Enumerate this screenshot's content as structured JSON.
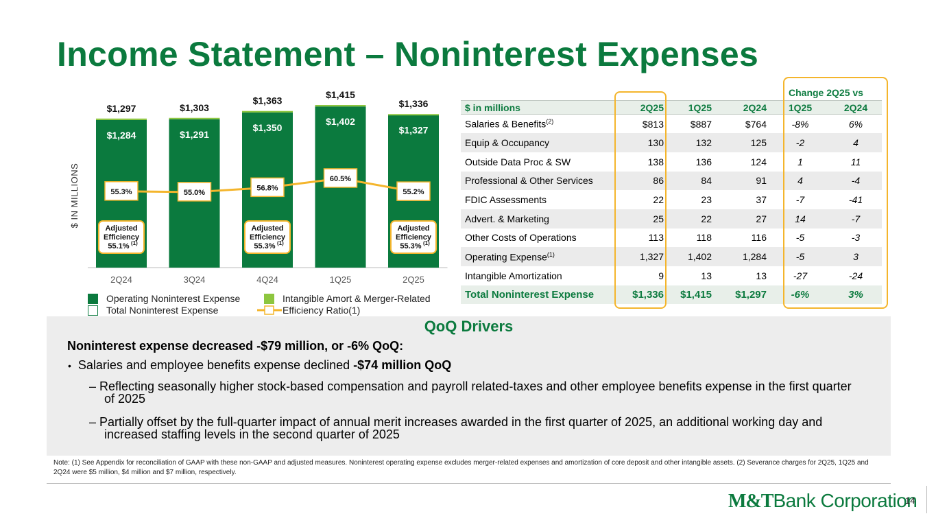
{
  "title": "Income Statement – Noninterest Expenses",
  "colors": {
    "brand_green": "#0b7a3e",
    "light_green": "#8dc63f",
    "highlight": "#f4b52c"
  },
  "chart_data": {
    "type": "bar",
    "categories": [
      "2Q24",
      "3Q24",
      "4Q24",
      "1Q25",
      "2Q25"
    ],
    "series": [
      {
        "name": "Operating Noninterest Expense",
        "values": [
          1284,
          1291,
          1350,
          1402,
          1327
        ],
        "labels": [
          "$1,284",
          "$1,291",
          "$1,350",
          "$1,402",
          "$1,327"
        ]
      },
      {
        "name": "Intangible Amort & Merger-Related",
        "values": [
          13,
          12,
          13,
          13,
          9
        ]
      },
      {
        "name": "Total Noninterest Expense",
        "values": [
          1297,
          1303,
          1363,
          1415,
          1336
        ],
        "labels": [
          "$1,297",
          "$1,303",
          "$1,363",
          "$1,415",
          "$1,336"
        ]
      },
      {
        "name": "Efficiency Ratio(1)",
        "values": [
          55.3,
          55.0,
          56.8,
          60.5,
          55.2
        ],
        "labels": [
          "55.3%",
          "55.0%",
          "56.8%",
          "60.5%",
          "55.2%"
        ]
      }
    ],
    "ylabel": "$ IN MILLIONS",
    "ylim": [
      0,
      1500
    ],
    "legend_position": "bottom",
    "adjusted_efficiency": [
      {
        "category": "2Q24",
        "line1": "Adjusted",
        "line2": "Efficiency",
        "value": "55.1%",
        "sup": "(1)"
      },
      {
        "category": "4Q24",
        "line1": "Adjusted",
        "line2": "Efficiency",
        "value": "55.3%",
        "sup": "(1)"
      },
      {
        "category": "2Q25",
        "line1": "Adjusted",
        "line2": "Efficiency",
        "value": "55.3%",
        "sup": "(1)"
      }
    ]
  },
  "table": {
    "change_header": "Change 2Q25 vs",
    "columns": [
      "$ in millions",
      "2Q25",
      "1Q25",
      "2Q24",
      "1Q25",
      "2Q24"
    ],
    "rows": [
      {
        "label": "Salaries & Benefits",
        "sup": "(2)",
        "values": [
          "$813",
          "$887",
          "$764",
          "-8%",
          "6%"
        ]
      },
      {
        "label": "Equip & Occupancy",
        "sup": "",
        "values": [
          "130",
          "132",
          "125",
          "-2",
          "4"
        ]
      },
      {
        "label": "Outside Data Proc & SW",
        "sup": "",
        "values": [
          "138",
          "136",
          "124",
          "1",
          "11"
        ]
      },
      {
        "label": "Professional & Other Services",
        "sup": "",
        "values": [
          "86",
          "84",
          "91",
          "4",
          "-4"
        ]
      },
      {
        "label": "FDIC Assessments",
        "sup": "",
        "values": [
          "22",
          "23",
          "37",
          "-7",
          "-41"
        ]
      },
      {
        "label": "Advert. & Marketing",
        "sup": "",
        "values": [
          "25",
          "22",
          "27",
          "14",
          "-7"
        ]
      },
      {
        "label": "Other Costs of Operations",
        "sup": "",
        "values": [
          "113",
          "118",
          "116",
          "-5",
          "-3"
        ]
      },
      {
        "label": "Operating Expense",
        "sup": "(1)",
        "values": [
          "1,327",
          "1,402",
          "1,284",
          "-5",
          "3"
        ]
      },
      {
        "label": "Intangible Amortization",
        "sup": "",
        "values": [
          "9",
          "13",
          "13",
          "-27",
          "-24"
        ]
      }
    ],
    "total": {
      "label": "Total Noninterest Expense",
      "values": [
        "$1,336",
        "$1,415",
        "$1,297",
        "-6%",
        "3%"
      ]
    }
  },
  "legend": {
    "operating": "Operating Noninterest Expense",
    "intangible": "Intangible Amort & Merger-Related",
    "total": "Total Noninterest Expense",
    "efficiency": "Efficiency Ratio(1)"
  },
  "drivers": {
    "heading": "QoQ Drivers",
    "headline": "Noninterest expense decreased -$79 million, or -6% QoQ:",
    "bullet_prefix": "Salaries and employee benefits expense declined ",
    "bullet_bold": "-$74 million QoQ",
    "sub1": "Reflecting seasonally higher stock-based compensation and payroll related-taxes and other employee benefits expense in the first quarter of 2025",
    "sub2": "Partially offset by the full-quarter impact of annual merit increases awarded in the first quarter of 2025, an additional working day and increased staffing levels in the second quarter of 2025"
  },
  "note": "Note: (1) See Appendix for reconciliation of GAAP with these non-GAAP and adjusted measures. Noninterest operating expense excludes merger-related expenses and amortization of core deposit and other intangible assets. (2) Severance charges for 2Q25, 1Q25 and 2Q24 were $5 million, $4 million and $7 million, respectively.",
  "logo": {
    "mark": "M&T",
    "text": "Bank Corporation"
  },
  "page_number": "14"
}
